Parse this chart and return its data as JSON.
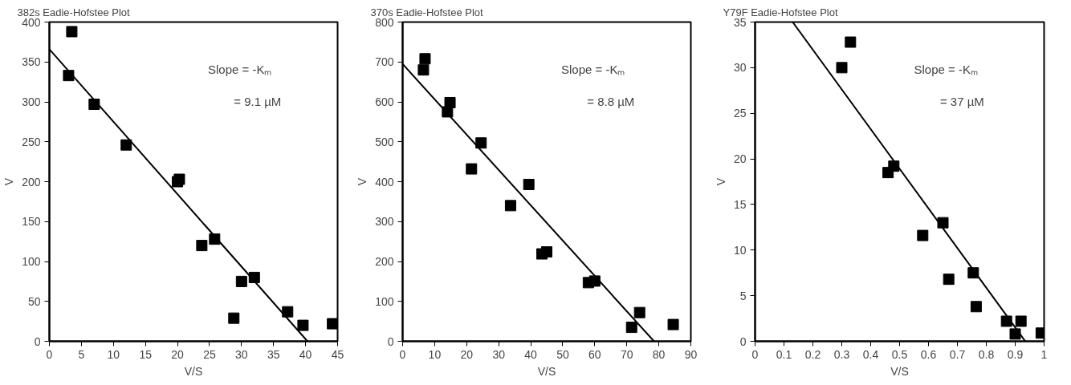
{
  "chart_data": [
    {
      "type": "scatter",
      "title": "382s Eadie-Hofstee Plot",
      "xlabel": "V/S",
      "ylabel": "V",
      "xlim": [
        0,
        45
      ],
      "ylim": [
        0,
        400
      ],
      "xticks": [
        0,
        5,
        10,
        15,
        20,
        25,
        30,
        35,
        40,
        45
      ],
      "yticks": [
        0,
        50,
        100,
        150,
        200,
        250,
        300,
        350,
        400
      ],
      "grid": false,
      "annotations": [
        "Slope = -Kₘ",
        "= 9.1 µM"
      ],
      "series": [
        {
          "marker": "square",
          "color": "#000000",
          "x": [
            3.5,
            3,
            7,
            12,
            20,
            20.3,
            23.8,
            25.8,
            28.8,
            30,
            32,
            37.2,
            39.6,
            44.2
          ],
          "values": [
            388,
            333,
            297,
            246,
            200,
            203,
            120,
            128,
            29,
            75,
            80,
            37,
            20,
            22
          ]
        },
        {
          "type": "line",
          "marker": "none",
          "color": "#000000",
          "x": [
            0,
            40.3
          ],
          "values": [
            366,
            0
          ]
        }
      ]
    },
    {
      "type": "scatter",
      "title": "370s Eadie-Hofstee Plot",
      "xlabel": "V/S",
      "ylabel": "V",
      "xlim": [
        0,
        90
      ],
      "ylim": [
        0,
        800
      ],
      "xticks": [
        0,
        10,
        20,
        30,
        40,
        50,
        60,
        70,
        80,
        90
      ],
      "yticks": [
        0,
        100,
        200,
        300,
        400,
        500,
        600,
        700,
        800
      ],
      "grid": false,
      "annotations": [
        "Slope = -Kₘ",
        "= 8.8 µM"
      ],
      "series": [
        {
          "marker": "square",
          "color": "#000000",
          "x": [
            7,
            6.5,
            14,
            14.8,
            24.5,
            21.5,
            33.7,
            39.4,
            43.5,
            45,
            58,
            60,
            71.5,
            74,
            84.5
          ],
          "values": [
            708,
            680,
            575,
            598,
            497,
            432,
            340,
            393,
            219,
            224,
            147,
            151,
            35,
            72,
            42
          ]
        },
        {
          "type": "line",
          "marker": "none",
          "color": "#000000",
          "x": [
            0,
            78.5
          ],
          "values": [
            695,
            0
          ]
        }
      ]
    },
    {
      "type": "scatter",
      "title": "Y79F Eadie-Hofstee Plot",
      "xlabel": "V/S",
      "ylabel": "V",
      "xlim": [
        0,
        1
      ],
      "ylim": [
        0,
        35
      ],
      "xticks": [
        0,
        0.1,
        0.2,
        0.3,
        0.4,
        0.5,
        0.6,
        0.7,
        0.8,
        0.9,
        1
      ],
      "yticks": [
        0,
        5,
        10,
        15,
        20,
        25,
        30,
        35
      ],
      "grid": false,
      "annotations": [
        "Slope = -Kₘ",
        "= 37 µM"
      ],
      "series": [
        {
          "marker": "square",
          "color": "#000000",
          "x": [
            0.3,
            0.33,
            0.46,
            0.48,
            0.58,
            0.65,
            0.67,
            0.755,
            0.765,
            0.87,
            0.9,
            0.92,
            0.99
          ],
          "values": [
            30,
            32.8,
            18.5,
            19.2,
            11.6,
            13,
            6.8,
            7.5,
            3.8,
            2.2,
            0.8,
            2.2,
            0.9
          ]
        },
        {
          "type": "line",
          "marker": "none",
          "color": "#000000",
          "x": [
            0.13,
            0.935
          ],
          "values": [
            35,
            0
          ]
        }
      ]
    }
  ]
}
